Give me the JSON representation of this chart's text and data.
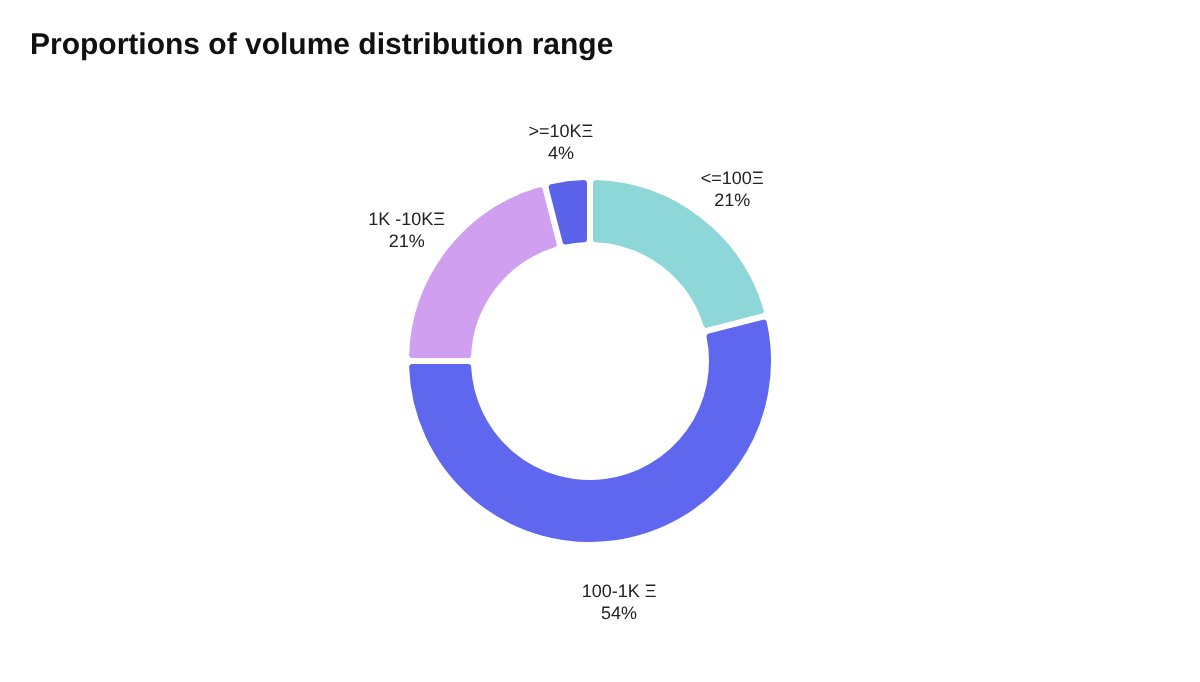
{
  "chart_data": {
    "type": "donut",
    "title": "Proportions of volume distribution range",
    "categories": [
      "<=100Ξ",
      "100-1K Ξ",
      "1K -10KΞ",
      ">=10KΞ"
    ],
    "values": [
      21,
      54,
      21,
      4
    ],
    "colors": [
      "#8ed7d9",
      "#5e67ee",
      "#d09ff0",
      "#5a63ea"
    ],
    "value_labels": [
      "21%",
      "54%",
      "21%",
      "4%"
    ],
    "legend": false
  }
}
